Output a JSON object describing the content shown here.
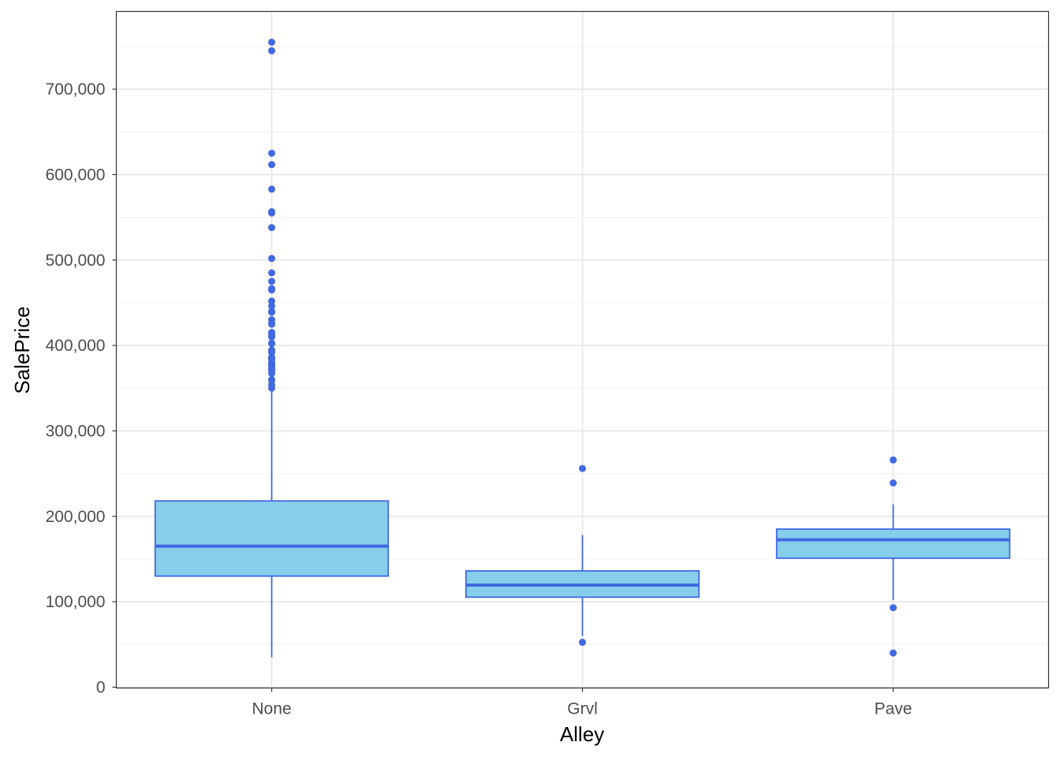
{
  "chart_data": {
    "type": "boxplot",
    "title": "",
    "xlabel": "Alley",
    "ylabel": "SalePrice",
    "categories": [
      "None",
      "Grvl",
      "Pave"
    ],
    "ylim": [
      -1000,
      791000
    ],
    "yticks": [
      0,
      100000,
      200000,
      300000,
      400000,
      500000,
      600000,
      700000
    ],
    "ytick_labels": [
      "0",
      "100,000",
      "200,000",
      "300,000",
      "400,000",
      "500,000",
      "600,000",
      "700,000"
    ],
    "grid": true,
    "fill_color": "#87CEEB",
    "line_color": "#4169E1",
    "boxes": [
      {
        "category": "None",
        "whisker_low": 34900,
        "q1": 130000,
        "median": 165000,
        "q3": 218000,
        "whisker_high": 350000,
        "outliers": [
          755000,
          745000,
          625000,
          611657,
          582933,
          556581,
          555000,
          538000,
          501837,
          485000,
          475000,
          466500,
          465000,
          451950,
          446261,
          440000,
          438780,
          430000,
          426000,
          424870,
          415298,
          412500,
          410000,
          402861,
          402000,
          394617,
          392500,
          392000,
          386250,
          385000,
          383970,
          380000,
          378500,
          377500,
          377426,
          375000,
          372500,
          372402,
          370878,
          367294,
          360000,
          359100,
          354000,
          350000
        ]
      },
      {
        "category": "Grvl",
        "whisker_low": 60000,
        "q1": 105300,
        "median": 119500,
        "q3": 136100,
        "whisker_high": 178000,
        "outliers": [
          256000,
          52500
        ]
      },
      {
        "category": "Pave",
        "whisker_low": 102000,
        "q1": 151000,
        "median": 172500,
        "q3": 185000,
        "whisker_high": 214000,
        "outliers": [
          265979,
          239000,
          93000,
          40000
        ]
      }
    ]
  }
}
